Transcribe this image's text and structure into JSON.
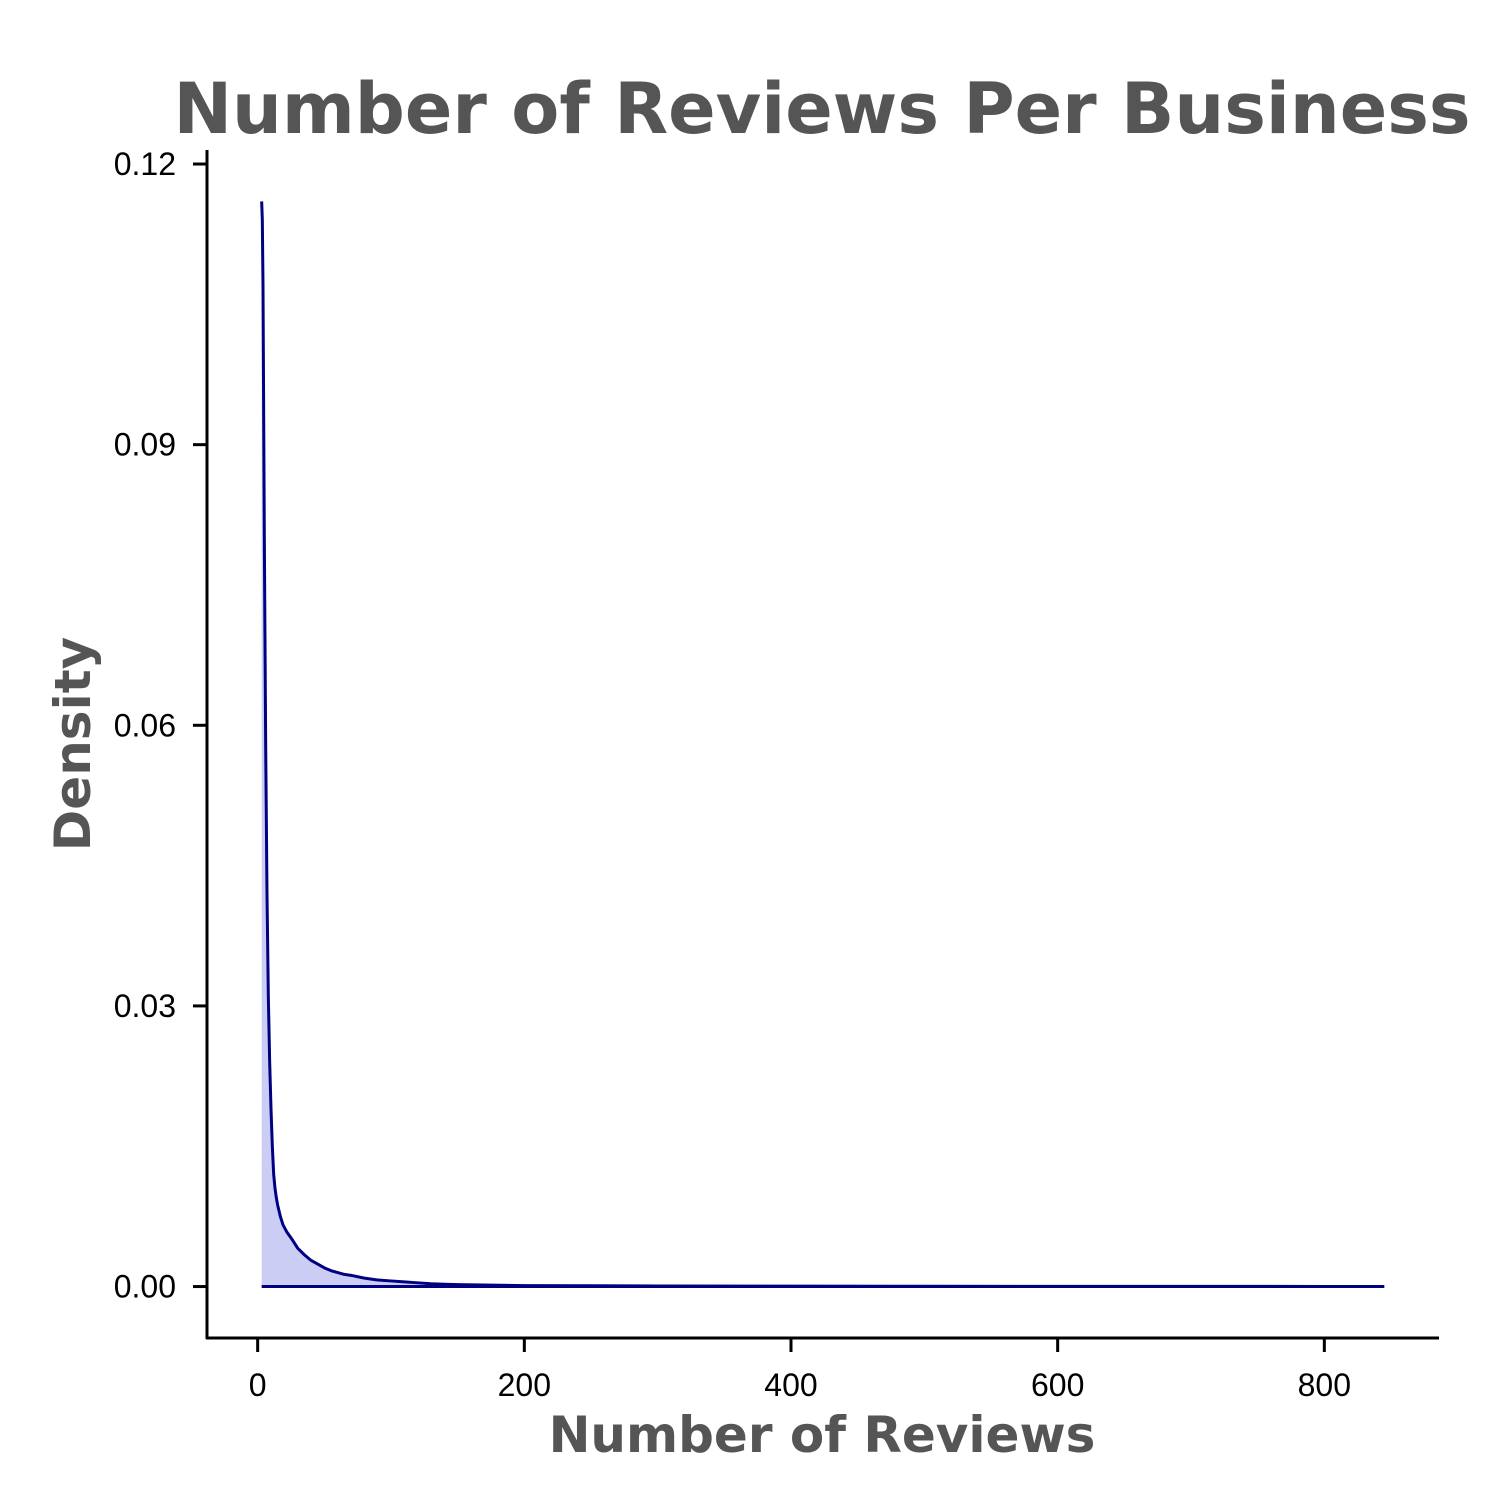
{
  "chart_data": {
    "type": "area",
    "title": "Number of Reviews Per Business",
    "xlabel": "Number of Reviews",
    "ylabel": "Density",
    "xlim": [
      -38,
      886
    ],
    "ylim": [
      -0.0055,
      0.1215
    ],
    "x_ticks": [
      0,
      200,
      400,
      600,
      800
    ],
    "y_ticks": [
      0.0,
      0.03,
      0.06,
      0.09,
      0.12
    ],
    "x_tick_labels": [
      "0",
      "200",
      "400",
      "600",
      "800"
    ],
    "y_tick_labels": [
      "0.00",
      "0.03",
      "0.06",
      "0.09",
      "0.12"
    ],
    "grid": false,
    "legend": "none",
    "line_color": "#000080",
    "fill_color": "#cccdf5",
    "series": [
      {
        "x": [
          3,
          3.5,
          4,
          5,
          6,
          7,
          8,
          9,
          10,
          11,
          12,
          13,
          14,
          15,
          17,
          19,
          22,
          26,
          30,
          35,
          40,
          45,
          50,
          55,
          60,
          65,
          70,
          80,
          90,
          100,
          110,
          120,
          130,
          140,
          150,
          175,
          200,
          250,
          300,
          400,
          500,
          600,
          700,
          800,
          845
        ],
        "y": [
          0.116,
          0.114,
          0.107,
          0.08,
          0.058,
          0.042,
          0.031,
          0.024,
          0.019,
          0.015,
          0.012,
          0.0105,
          0.0095,
          0.0087,
          0.0075,
          0.0066,
          0.0058,
          0.005,
          0.0041,
          0.0034,
          0.0028,
          0.0024,
          0.002,
          0.0017,
          0.0015,
          0.0013,
          0.0012,
          0.0009,
          0.0007,
          0.0006,
          0.0005,
          0.0004,
          0.0003,
          0.00025,
          0.0002,
          0.00015,
          0.0001,
          8e-05,
          6e-05,
          4e-05,
          3e-05,
          2e-05,
          2e-05,
          1e-05,
          0.0
        ]
      }
    ]
  }
}
